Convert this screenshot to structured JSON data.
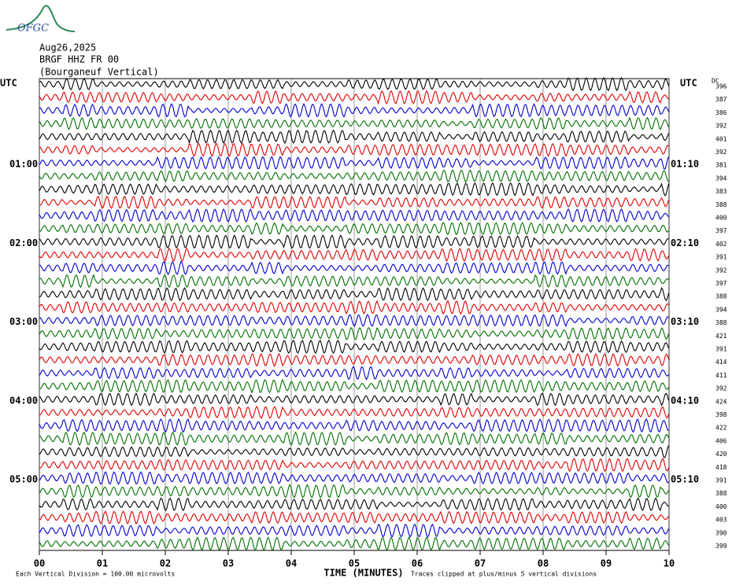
{
  "chart_data": {
    "type": "helicorder",
    "logo": "OFGC",
    "date": "Aug26,2025",
    "station": "BRGF HHZ FR 00",
    "station_name": "(Bourganeuf Vertical)",
    "time_zone": "UTC",
    "dc_header": "DC",
    "row_labels_left": [
      null,
      null,
      null,
      null,
      null,
      null,
      "01:00",
      null,
      null,
      null,
      null,
      null,
      "02:00",
      null,
      null,
      null,
      null,
      null,
      "03:00",
      null,
      null,
      null,
      null,
      null,
      "04:00",
      null,
      null,
      null,
      null,
      null,
      "05:00",
      null,
      null,
      null,
      null,
      null
    ],
    "row_labels_right": [
      null,
      null,
      null,
      null,
      null,
      null,
      "01:10",
      null,
      null,
      null,
      null,
      null,
      "02:10",
      null,
      null,
      null,
      null,
      null,
      "03:10",
      null,
      null,
      null,
      null,
      null,
      "04:10",
      null,
      null,
      null,
      null,
      null,
      "05:10",
      null,
      null,
      null,
      null,
      null
    ],
    "dc_values": [
      396,
      387,
      386,
      392,
      401,
      392,
      381,
      394,
      383,
      388,
      400,
      397,
      402,
      391,
      392,
      397,
      388,
      394,
      388,
      421,
      391,
      414,
      411,
      392,
      424,
      398,
      422,
      406,
      420,
      418,
      391,
      388,
      400,
      403,
      390,
      399
    ],
    "trace_colors": [
      "#000000",
      "#e00000",
      "#0000d0",
      "#007000"
    ],
    "xlabel": "TIME (MINUTES)",
    "xlim": [
      0,
      10
    ],
    "xticks": [
      {
        "value": 0,
        "label": "00"
      },
      {
        "value": 1,
        "label": "01"
      },
      {
        "value": 2,
        "label": "02"
      },
      {
        "value": 3,
        "label": "03"
      },
      {
        "value": 4,
        "label": "04"
      },
      {
        "value": 5,
        "label": "05"
      },
      {
        "value": 6,
        "label": "06"
      },
      {
        "value": 7,
        "label": "07"
      },
      {
        "value": 8,
        "label": "08"
      },
      {
        "value": 9,
        "label": "09"
      },
      {
        "value": 10,
        "label": "10"
      }
    ],
    "scale_note": "Each Vertical Division =  100.00 microvolts",
    "clip_note": "Traces clipped at plus/minus 5 vertical divisions"
  }
}
